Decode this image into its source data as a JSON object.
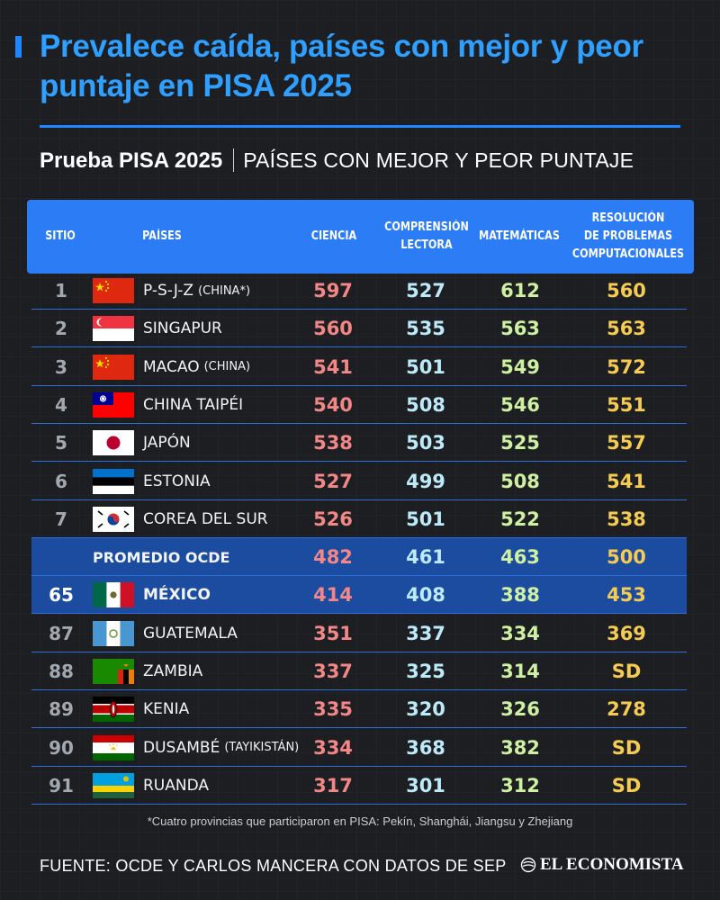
{
  "headline": "Prevalece caída, países con mejor y peor puntaje en PISA 2025",
  "subtitle": {
    "bold": "Prueba PISA 2025",
    "light": "PAÍSES CON MEJOR Y PEOR PUNTAJE"
  },
  "columns": {
    "sitio": "SITIO",
    "paises": "PAÍSES",
    "ciencia": "CIENCIA",
    "lectora": "COMPRENSIÓN LECTORA",
    "matematicas": "MATEMÁTICAS",
    "resolucion": "RESOLUCIÓN DE PROBLEMAS COMPUTACIONALES"
  },
  "rows": [
    {
      "rank": "1",
      "flag": "china-flag",
      "country": "P-S-J-Z",
      "note": "(CHINA*)",
      "ciencia": "597",
      "lectora": "527",
      "matematicas": "612",
      "resolucion": "560"
    },
    {
      "rank": "2",
      "flag": "singapore-flag",
      "country": "SINGAPUR",
      "note": "",
      "ciencia": "560",
      "lectora": "535",
      "matematicas": "563",
      "resolucion": "563"
    },
    {
      "rank": "3",
      "flag": "china-flag",
      "country": "MACAO",
      "note": "(CHINA)",
      "ciencia": "541",
      "lectora": "501",
      "matematicas": "549",
      "resolucion": "572"
    },
    {
      "rank": "4",
      "flag": "taiwan-flag",
      "country": "CHINA TAIPÉI",
      "note": "",
      "ciencia": "540",
      "lectora": "508",
      "matematicas": "546",
      "resolucion": "551"
    },
    {
      "rank": "5",
      "flag": "japan-flag",
      "country": "JAPÓN",
      "note": "",
      "ciencia": "538",
      "lectora": "503",
      "matematicas": "525",
      "resolucion": "557"
    },
    {
      "rank": "6",
      "flag": "estonia-flag",
      "country": "ESTONIA",
      "note": "",
      "ciencia": "527",
      "lectora": "499",
      "matematicas": "508",
      "resolucion": "541"
    },
    {
      "rank": "7",
      "flag": "south-korea-flag",
      "country": "COREA DEL SUR",
      "note": "",
      "ciencia": "526",
      "lectora": "501",
      "matematicas": "522",
      "resolucion": "538"
    },
    {
      "rank": "",
      "flag": "",
      "country": "PROMEDIO OCDE",
      "note": "",
      "ciencia": "482",
      "lectora": "461",
      "matematicas": "463",
      "resolucion": "500"
    },
    {
      "rank": "65",
      "flag": "mexico-flag",
      "country": "MÉXICO",
      "note": "",
      "ciencia": "414",
      "lectora": "408",
      "matematicas": "388",
      "resolucion": "453"
    },
    {
      "rank": "87",
      "flag": "guatemala-flag",
      "country": "GUATEMALA",
      "note": "",
      "ciencia": "351",
      "lectora": "337",
      "matematicas": "334",
      "resolucion": "369"
    },
    {
      "rank": "88",
      "flag": "zambia-flag",
      "country": "ZAMBIA",
      "note": "",
      "ciencia": "337",
      "lectora": "325",
      "matematicas": "314",
      "resolucion": "SD"
    },
    {
      "rank": "89",
      "flag": "kenya-flag",
      "country": "KENIA",
      "note": "",
      "ciencia": "335",
      "lectora": "320",
      "matematicas": "326",
      "resolucion": "278"
    },
    {
      "rank": "90",
      "flag": "tajikistan-flag",
      "country": "DUSAMBÉ",
      "note": "(TAYIKISTÁN)",
      "ciencia": "334",
      "lectora": "368",
      "matematicas": "382",
      "resolucion": "SD"
    },
    {
      "rank": "91",
      "flag": "rwanda-flag",
      "country": "RUANDA",
      "note": "",
      "ciencia": "317",
      "lectora": "301",
      "matematicas": "312",
      "resolucion": "SD"
    }
  ],
  "footnote": "*Cuatro provincias que participaron en PISA: Pekín, Shanghái, Jiangsu y Zhejiang",
  "source": "FUENTE: OCDE Y CARLOS MANCERA CON DATOS DE SEP",
  "brand": "EL ECONOMISTA",
  "colors": {
    "background": "#1c1e22",
    "accent": "#2c7cf6",
    "headline": "#2fa0ff",
    "highlight_row": "#1b4c9f",
    "ciencia": "#f38686",
    "lectora": "#bdeaf8",
    "matematicas": "#cff0a2",
    "resolucion": "#f6cb52"
  },
  "chart_data": {
    "type": "table",
    "title": "Prueba PISA 2025",
    "subtitle": "PAÍSES CON MEJOR Y PEOR PUNTAJE",
    "columns": [
      "SITIO",
      "PAÍSES",
      "CIENCIA",
      "COMPRENSIÓN LECTORA",
      "MATEMÁTICAS",
      "RESOLUCIÓN DE PROBLEMAS COMPUTACIONALES"
    ],
    "rows": [
      [
        "1",
        "P-S-J-Z (CHINA*)",
        597,
        527,
        612,
        560
      ],
      [
        "2",
        "SINGAPUR",
        560,
        535,
        563,
        563
      ],
      [
        "3",
        "MACAO (CHINA)",
        541,
        501,
        549,
        572
      ],
      [
        "4",
        "CHINA TAIPÉI",
        540,
        508,
        546,
        551
      ],
      [
        "5",
        "JAPÓN",
        538,
        503,
        525,
        557
      ],
      [
        "6",
        "ESTONIA",
        527,
        499,
        508,
        541
      ],
      [
        "7",
        "COREA DEL SUR",
        526,
        501,
        522,
        538
      ],
      [
        "",
        "PROMEDIO OCDE",
        482,
        461,
        463,
        500
      ],
      [
        "65",
        "MÉXICO",
        414,
        408,
        388,
        453
      ],
      [
        "87",
        "GUATEMALA",
        351,
        337,
        334,
        369
      ],
      [
        "88",
        "ZAMBIA",
        337,
        325,
        314,
        "SD"
      ],
      [
        "89",
        "KENIA",
        335,
        320,
        326,
        278
      ],
      [
        "90",
        "DUSAMBÉ (TAYIKISTÁN)",
        334,
        368,
        382,
        "SD"
      ],
      [
        "91",
        "RUANDA",
        317,
        301,
        312,
        "SD"
      ]
    ]
  }
}
